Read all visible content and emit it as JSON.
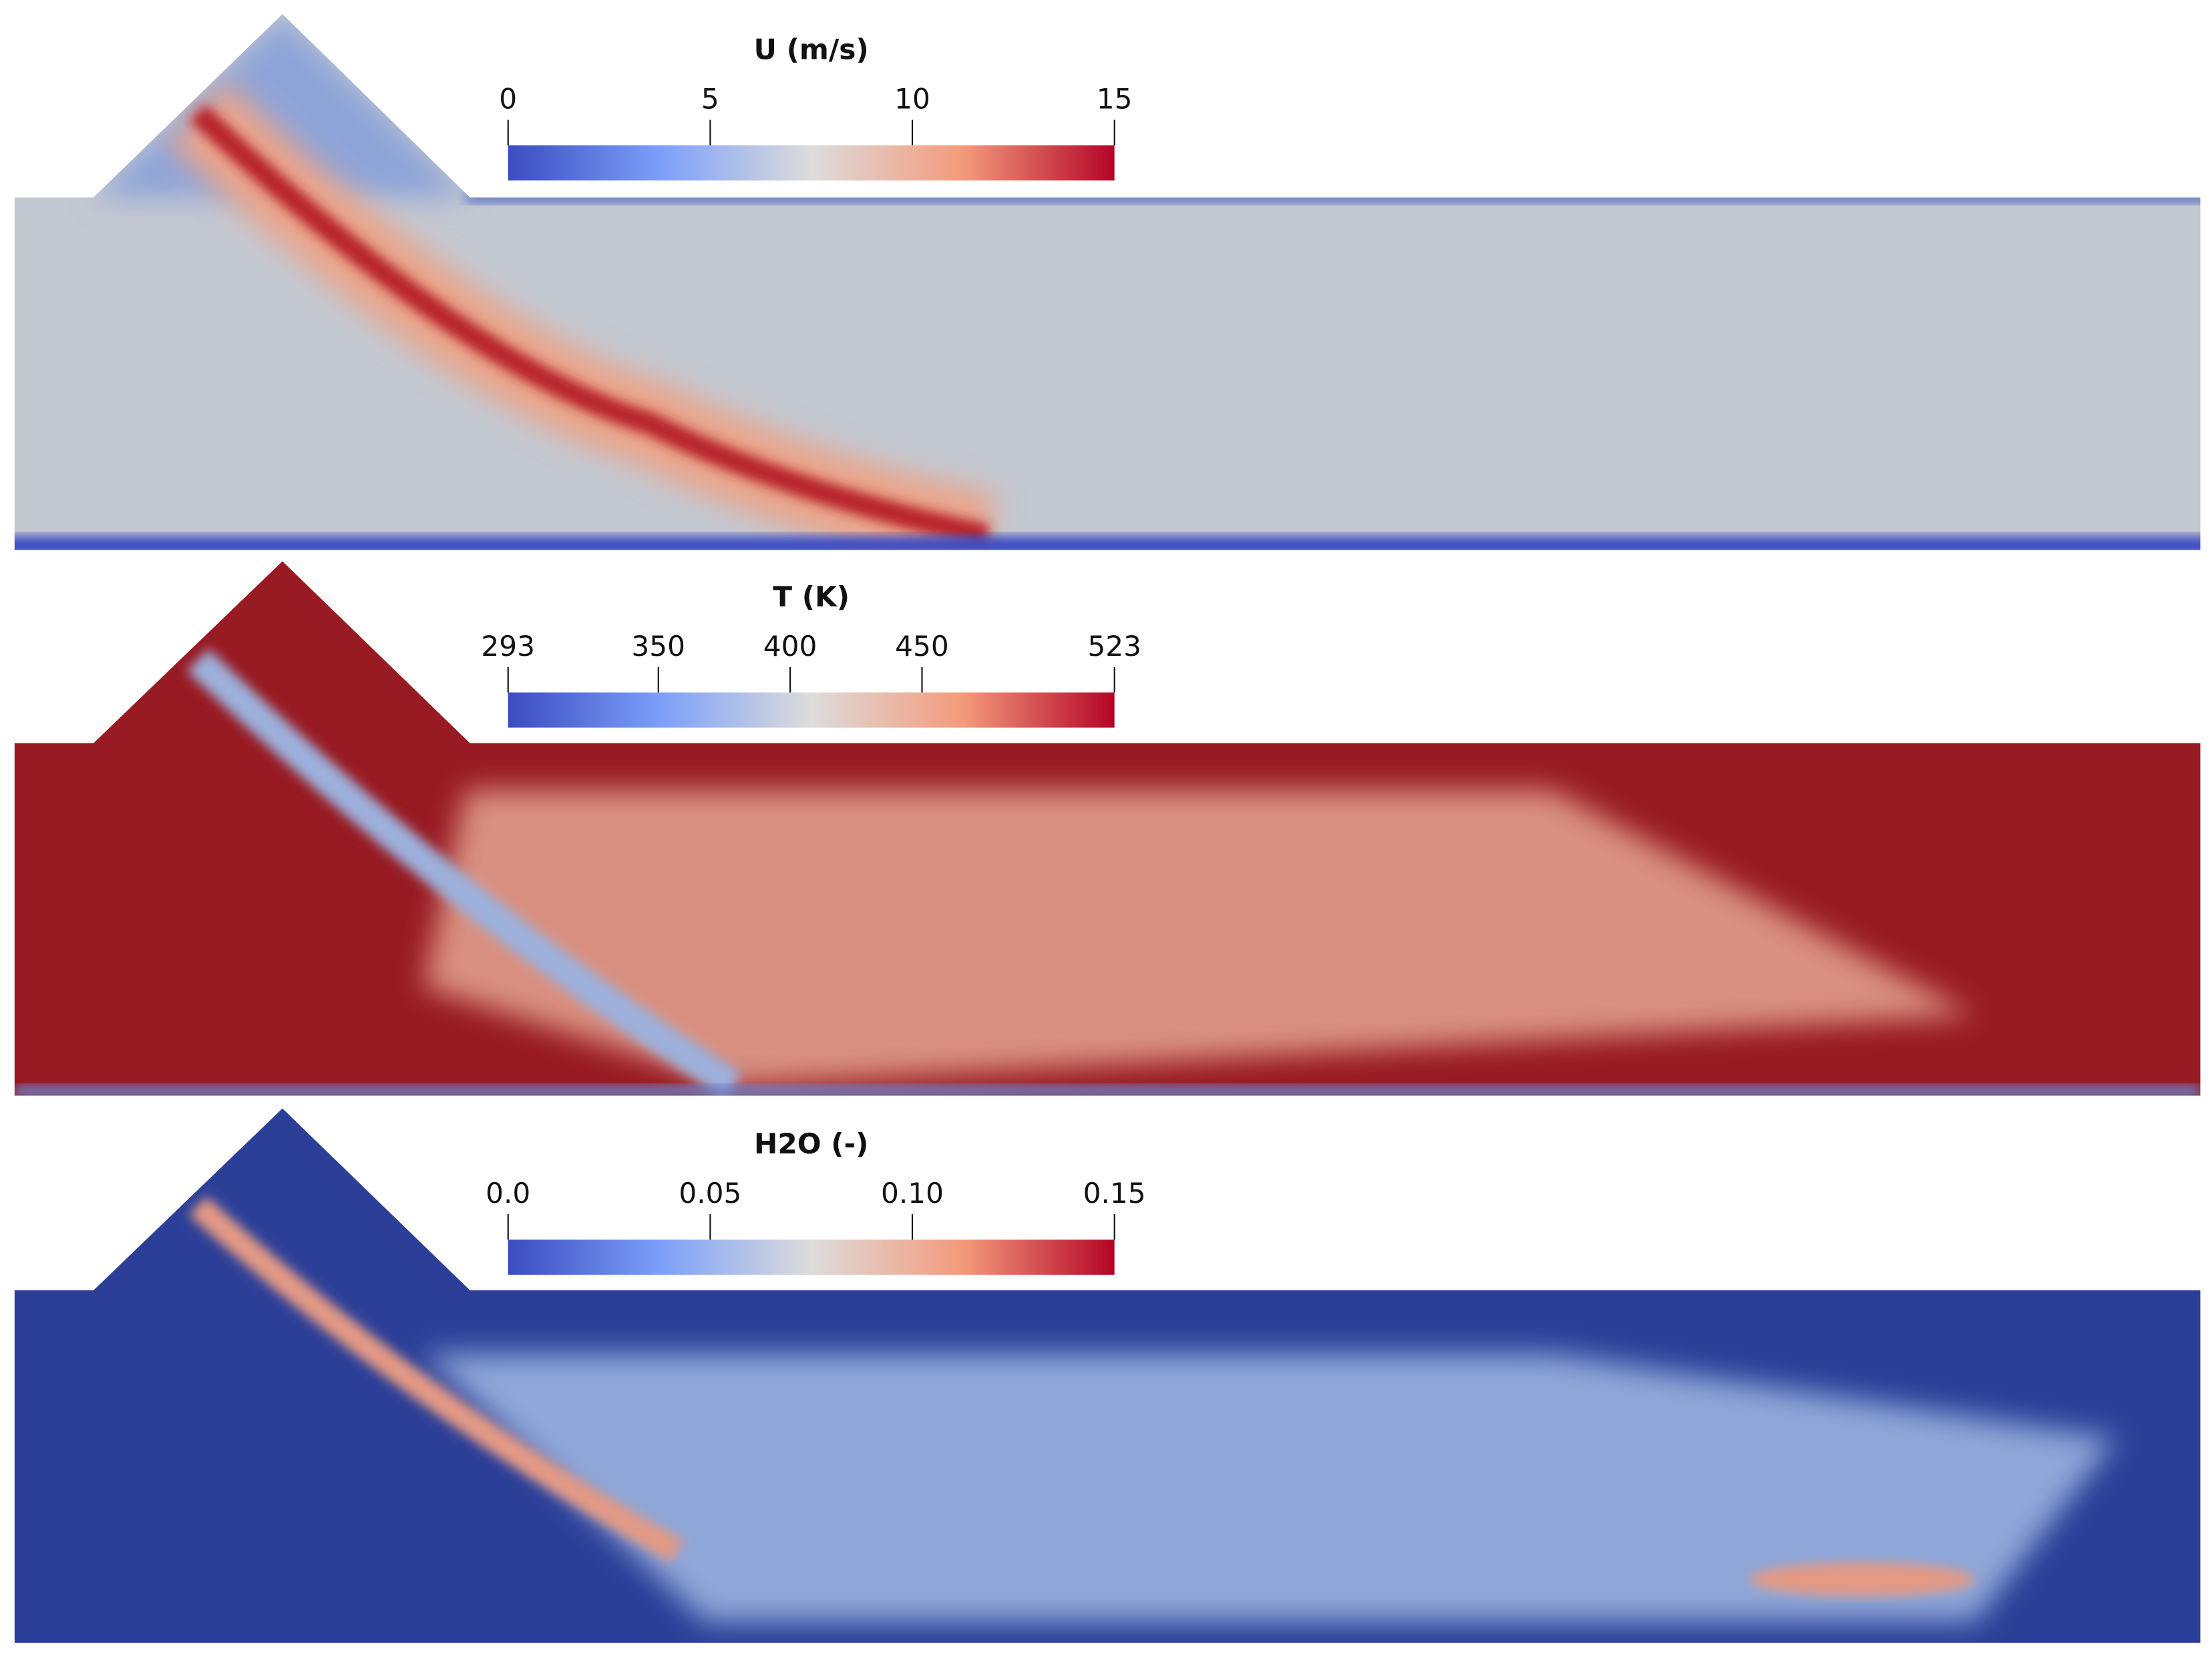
{
  "panels": [
    {
      "colorbar": {
        "title": "U (m/s)",
        "range": [
          0,
          15
        ],
        "ticks": [
          0,
          5,
          10,
          15
        ]
      }
    },
    {
      "colorbar": {
        "title": "T (K)",
        "range": [
          293,
          523
        ],
        "ticks": [
          293,
          350,
          400,
          450,
          523
        ]
      }
    },
    {
      "colorbar": {
        "title": "H2O (-)",
        "range": [
          0,
          0.15
        ],
        "ticks": [
          {
            "value": 0,
            "label": "0.0"
          },
          {
            "value": 0.05,
            "label": "0.05"
          },
          {
            "value": 0.1,
            "label": "0.10"
          },
          {
            "value": 0.15,
            "label": "0.15"
          }
        ]
      }
    }
  ]
}
